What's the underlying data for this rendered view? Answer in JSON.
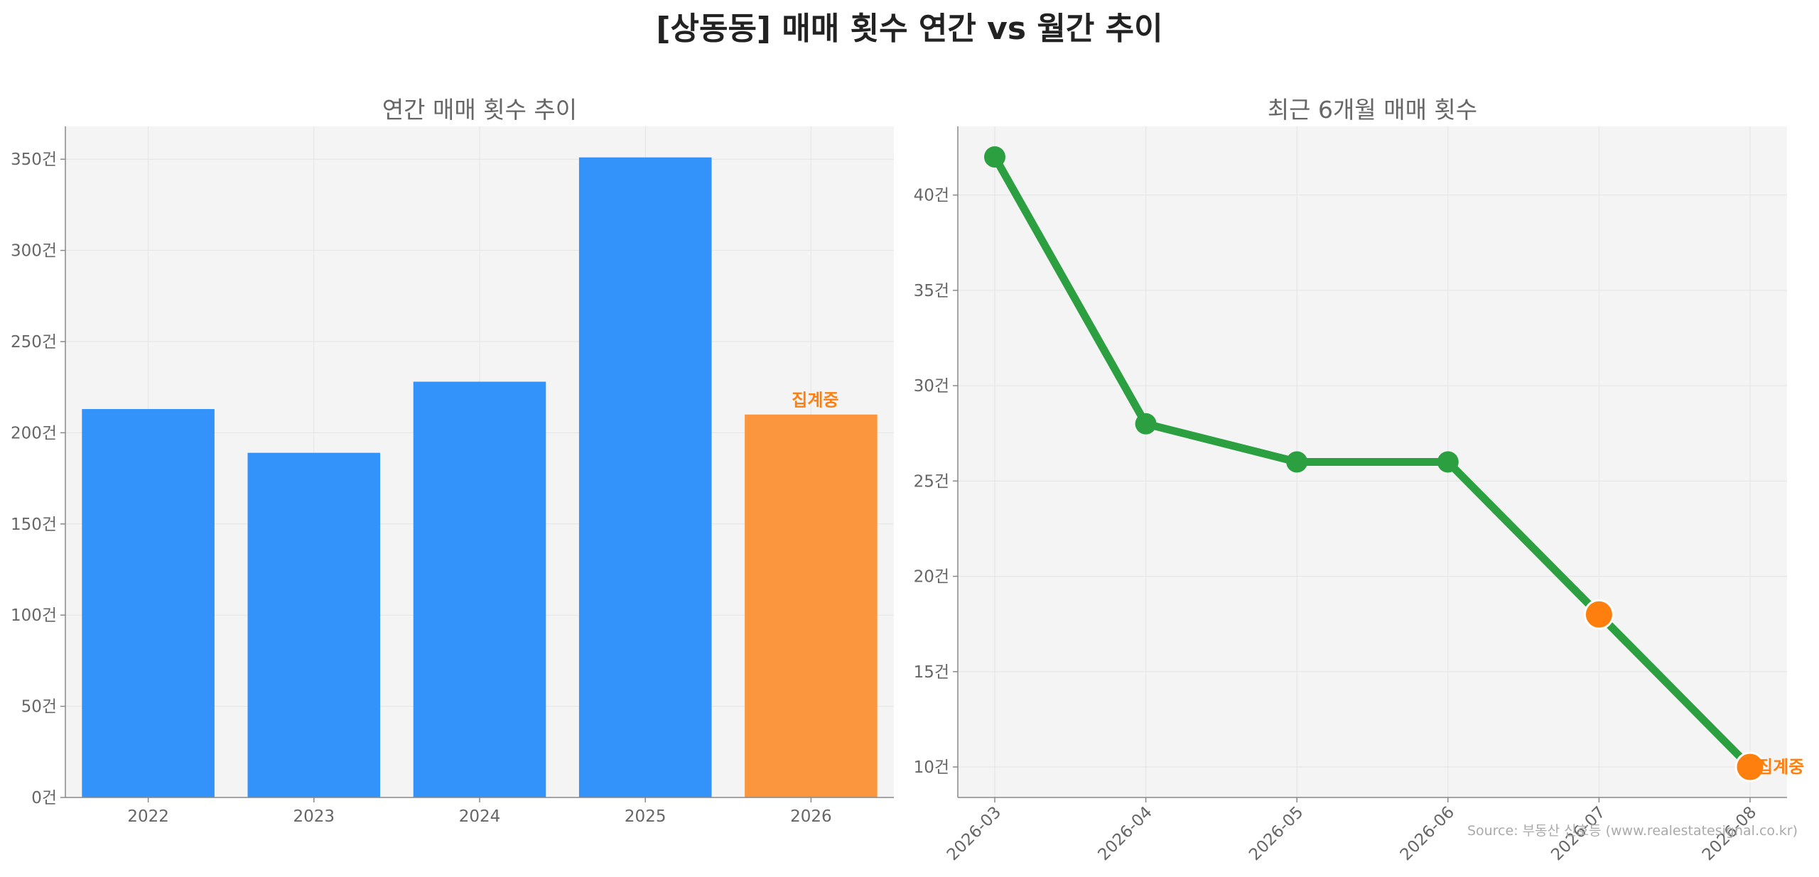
{
  "title": "[상동동] 매매 횟수 연간 vs 월간 추이",
  "source": "Source: 부동산 신호등 (www.realestatesignal.co.kr)",
  "colors": {
    "panel_bg": "#f4f4f4",
    "grid": "#e4e4e4",
    "axis": "#888888",
    "bar": "#3393fb",
    "bar_partial": "#fb953e",
    "line": "#2ca040",
    "marker_partial": "#ff7f0e",
    "note": "#ff7f0e"
  },
  "chart_data": [
    {
      "type": "bar",
      "title": "연간 매매 횟수 추이",
      "categories": [
        "2022",
        "2023",
        "2024",
        "2025",
        "2026"
      ],
      "values": [
        213,
        189,
        228,
        351,
        210
      ],
      "partial_index": 4,
      "partial_label": "집계중",
      "ylim": [
        0,
        368
      ],
      "yticks": [
        0,
        50,
        100,
        150,
        200,
        250,
        300,
        350
      ],
      "ytick_suffix": "건",
      "grid": true
    },
    {
      "type": "line",
      "title": "최근 6개월 매매 횟수",
      "categories": [
        "2026-03",
        "2026-04",
        "2026-05",
        "2026-06",
        "2026-07",
        "2026-08"
      ],
      "values": [
        42,
        28,
        26,
        26,
        18,
        10
      ],
      "partial_indices": [
        4,
        5
      ],
      "partial_label": "집계중",
      "ylim": [
        8.4,
        43.6
      ],
      "yticks": [
        10,
        15,
        20,
        25,
        30,
        35,
        40
      ],
      "ytick_suffix": "건",
      "grid": true
    }
  ]
}
